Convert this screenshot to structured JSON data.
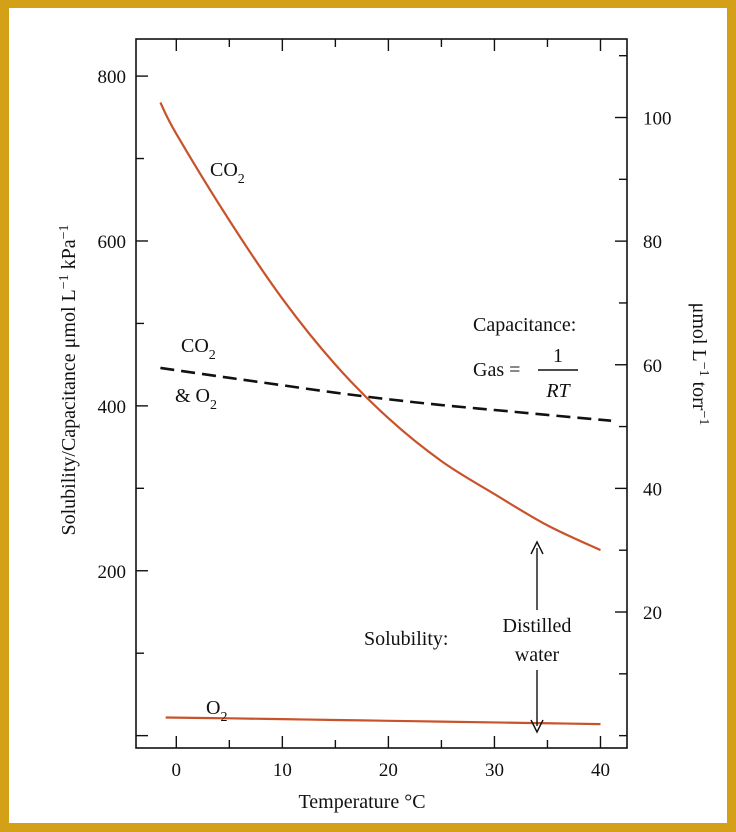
{
  "chart_data": {
    "type": "line",
    "xlabel": "Temperature °C",
    "ylabel": "Solubility/Capacitance μmol L⁻¹ kPa⁻¹",
    "ylabel_right": "μmol L⁻¹ torr⁻¹",
    "xlim": [
      -3.8,
      42.5
    ],
    "ylim": [
      -15,
      845
    ],
    "ylim_right": [
      -2,
      112.7
    ],
    "x_ticks": [
      0,
      10,
      20,
      30,
      40
    ],
    "y_ticks": [
      200,
      400,
      600,
      800
    ],
    "y_ticks_right": [
      20,
      40,
      60,
      80,
      100
    ],
    "grid": false,
    "series": [
      {
        "name": "CO2",
        "color": "#c8532a",
        "dash": false,
        "x": [
          -1.5,
          0,
          5,
          10,
          15,
          20,
          25,
          30,
          35,
          40
        ],
        "values": [
          768,
          730,
          625,
          530,
          450,
          385,
          333,
          293,
          255,
          225
        ]
      },
      {
        "name": "CO2 & O2",
        "color": "#111111",
        "dash": true,
        "x": [
          -1.5,
          5,
          10,
          15,
          20,
          25,
          30,
          35,
          41
        ],
        "values": [
          446,
          434,
          425,
          416,
          408,
          401,
          395,
          389,
          382
        ]
      },
      {
        "name": "O2",
        "color": "#c8532a",
        "dash": false,
        "x": [
          -1,
          5,
          10,
          15,
          20,
          25,
          30,
          35,
          40
        ],
        "values": [
          22,
          21,
          20,
          19,
          18,
          17,
          16,
          15,
          14
        ]
      }
    ],
    "annotations": {
      "co2_label": "CO",
      "co2_sub": "2",
      "mix_label_1": "CO",
      "mix_sub_1": "2",
      "mix_label_2": "& O",
      "mix_sub_2": "2",
      "o2_label": "O",
      "o2_sub": "2",
      "capacitance": "Capacitance:",
      "gas_eq": "Gas =",
      "frac_num": "1",
      "frac_den": "RT",
      "solubility": "Solubility:",
      "distilled": "Distilled",
      "water": "water"
    }
  }
}
